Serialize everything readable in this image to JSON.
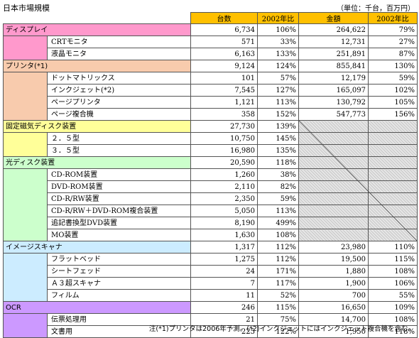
{
  "title": "日本市場規模",
  "unit_note": "（単位：千台，百万円）",
  "headers": {
    "units": "台数",
    "units_ratio": "2002年比",
    "amount": "金額",
    "amount_ratio": "2002年比"
  },
  "colors": {
    "header": "#ffc000",
    "display": "#ff99cc",
    "printer": "#f8cbad",
    "hdd": "#ffff99",
    "optical": "#ccffcc",
    "scanner": "#ccecff",
    "ocr": "#cc99ff"
  },
  "rows": [
    {
      "cat": "ディスプレイ",
      "sub": "",
      "units": "6,734",
      "ur": "106%",
      "amount": "264,622",
      "ar": "79%",
      "group": "display",
      "start": true
    },
    {
      "cat": "",
      "sub": "CRTモニタ",
      "units": "571",
      "ur": "33%",
      "amount": "12,731",
      "ar": "27%",
      "group": "display"
    },
    {
      "cat": "",
      "sub": "液晶モニタ",
      "units": "6,163",
      "ur": "133%",
      "amount": "251,891",
      "ar": "87%",
      "group": "display"
    },
    {
      "cat": "プリンタ(*1)",
      "sub": "",
      "units": "9,124",
      "ur": "124%",
      "amount": "855,841",
      "ar": "130%",
      "group": "printer",
      "start": true
    },
    {
      "cat": "",
      "sub": "ドットマトリックス",
      "units": "101",
      "ur": "57%",
      "amount": "12,179",
      "ar": "59%",
      "group": "printer"
    },
    {
      "cat": "",
      "sub": "インクジェット(*2)",
      "units": "7,545",
      "ur": "127%",
      "amount": "165,097",
      "ar": "102%",
      "group": "printer"
    },
    {
      "cat": "",
      "sub": "ページプリンタ",
      "units": "1,121",
      "ur": "113%",
      "amount": "130,792",
      "ar": "105%",
      "group": "printer"
    },
    {
      "cat": "",
      "sub": "ページ複合機",
      "units": "358",
      "ur": "152%",
      "amount": "547,773",
      "ar": "156%",
      "group": "printer"
    },
    {
      "cat": "固定磁気ディスク装置",
      "sub": "",
      "units": "27,730",
      "ur": "139%",
      "amount": "",
      "ar": "",
      "group": "hdd",
      "start": true,
      "hatch": true
    },
    {
      "cat": "",
      "sub": "２．５型",
      "units": "10,750",
      "ur": "145%",
      "amount": "",
      "ar": "",
      "group": "hdd",
      "hatch": true
    },
    {
      "cat": "",
      "sub": "３．５型",
      "units": "16,980",
      "ur": "135%",
      "amount": "",
      "ar": "",
      "group": "hdd",
      "hatch": true
    },
    {
      "cat": "光ディスク装置",
      "sub": "",
      "units": "20,590",
      "ur": "118%",
      "amount": "",
      "ar": "",
      "group": "optical",
      "start": true,
      "hatch": true
    },
    {
      "cat": "",
      "sub": "CD-ROM装置",
      "units": "1,260",
      "ur": "38%",
      "amount": "",
      "ar": "",
      "group": "optical",
      "hatch": true
    },
    {
      "cat": "",
      "sub": "DVD-ROM装置",
      "units": "2,110",
      "ur": "82%",
      "amount": "",
      "ar": "",
      "group": "optical",
      "hatch": true
    },
    {
      "cat": "",
      "sub": "CD-R/RW装置",
      "units": "2,350",
      "ur": "59%",
      "amount": "",
      "ar": "",
      "group": "optical",
      "hatch": true
    },
    {
      "cat": "",
      "sub": "CD-R/RW＋DVD-ROM複合装置",
      "units": "5,050",
      "ur": "113%",
      "amount": "",
      "ar": "",
      "group": "optical",
      "hatch": true
    },
    {
      "cat": "",
      "sub": "追記書換型DVD装置",
      "units": "8,190",
      "ur": "499%",
      "amount": "",
      "ar": "",
      "group": "optical",
      "hatch": true
    },
    {
      "cat": "",
      "sub": "MO装置",
      "units": "1,630",
      "ur": "108%",
      "amount": "",
      "ar": "",
      "group": "optical",
      "hatch": true
    },
    {
      "cat": "イメージスキャナ",
      "sub": "",
      "units": "1,317",
      "ur": "112%",
      "amount": "23,980",
      "ar": "110%",
      "group": "scanner",
      "start": true
    },
    {
      "cat": "",
      "sub": "フラットベッド",
      "units": "1,275",
      "ur": "112%",
      "amount": "19,500",
      "ar": "115%",
      "group": "scanner"
    },
    {
      "cat": "",
      "sub": "シートフェッド",
      "units": "24",
      "ur": "171%",
      "amount": "1,880",
      "ar": "108%",
      "group": "scanner"
    },
    {
      "cat": "",
      "sub": "Ａ３超スキャナ",
      "units": "7",
      "ur": "117%",
      "amount": "1,900",
      "ar": "106%",
      "group": "scanner"
    },
    {
      "cat": "",
      "sub": "フィルム",
      "units": "11",
      "ur": "52%",
      "amount": "700",
      "ar": "55%",
      "group": "scanner"
    },
    {
      "cat": "OCR",
      "sub": "",
      "units": "246",
      "ur": "115%",
      "amount": "16,650",
      "ar": "109%",
      "group": "ocr",
      "start": true
    },
    {
      "cat": "",
      "sub": "伝票処理用",
      "units": "21",
      "ur": "75%",
      "amount": "14,700",
      "ar": "108%",
      "group": "ocr"
    },
    {
      "cat": "",
      "sub": "文書用",
      "units": "225",
      "ur": "122%",
      "amount": "1,950",
      "ar": "118%",
      "group": "ocr"
    }
  ],
  "footnote": "注(*1)プリンタは2006年予測。(*2)インクジェットにはインクジェット複合機を含む。"
}
